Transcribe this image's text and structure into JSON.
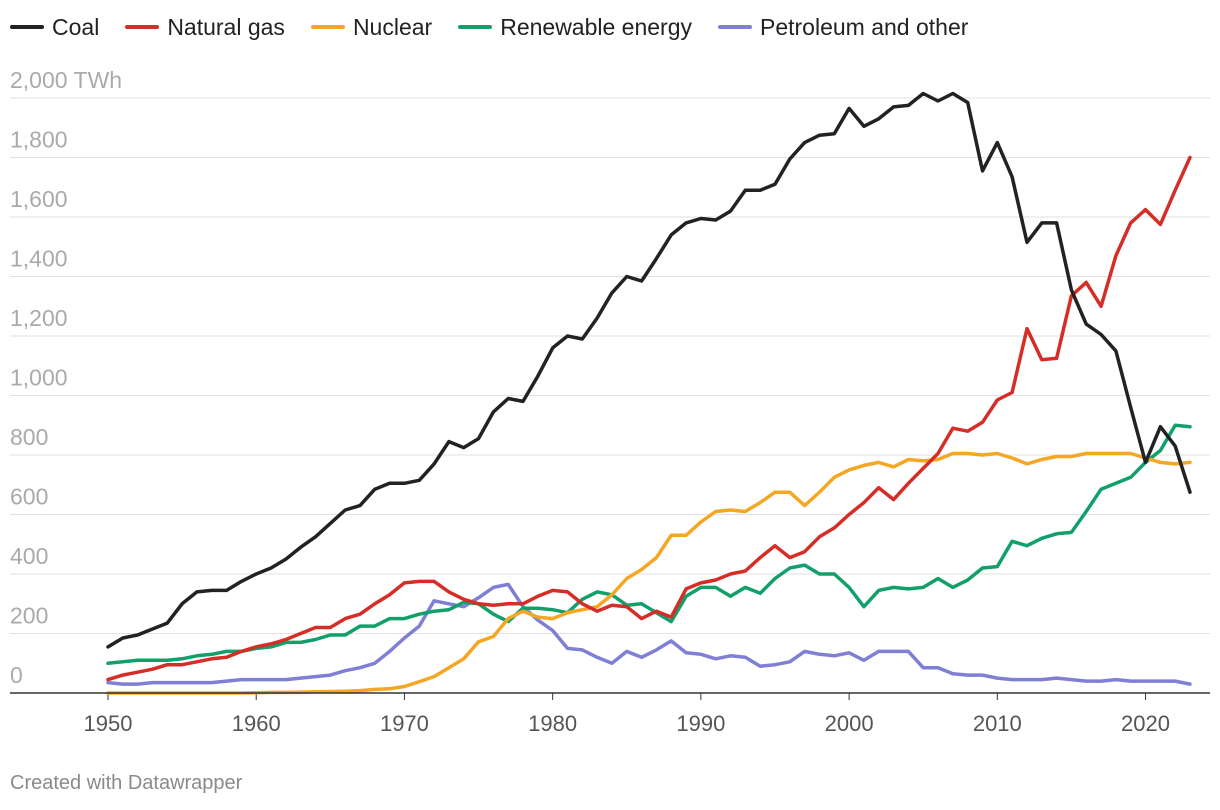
{
  "chart_data": {
    "type": "line",
    "title": "",
    "xlabel": "",
    "ylabel": "",
    "y_unit": "TWh",
    "xlim": [
      1950,
      2023
    ],
    "ylim": [
      0,
      2000
    ],
    "x_ticks": [
      "1950",
      "1960",
      "1970",
      "1980",
      "1990",
      "2000",
      "2010",
      "2020"
    ],
    "y_ticks": [
      "0",
      "200",
      "400",
      "600",
      "800",
      "1,000",
      "1,200",
      "1,400",
      "1,600",
      "1,800",
      "2,000 TWh"
    ],
    "grid": true,
    "legend_position": "top-left",
    "x": [
      1950,
      1951,
      1952,
      1953,
      1954,
      1955,
      1956,
      1957,
      1958,
      1959,
      1960,
      1961,
      1962,
      1963,
      1964,
      1965,
      1966,
      1967,
      1968,
      1969,
      1970,
      1971,
      1972,
      1973,
      1974,
      1975,
      1976,
      1977,
      1978,
      1979,
      1980,
      1981,
      1982,
      1983,
      1984,
      1985,
      1986,
      1987,
      1988,
      1989,
      1990,
      1991,
      1992,
      1993,
      1994,
      1995,
      1996,
      1997,
      1998,
      1999,
      2000,
      2001,
      2002,
      2003,
      2004,
      2005,
      2006,
      2007,
      2008,
      2009,
      2010,
      2011,
      2012,
      2013,
      2014,
      2015,
      2016,
      2017,
      2018,
      2019,
      2020,
      2021,
      2022,
      2023
    ],
    "series": [
      {
        "name": "Coal",
        "color": "#222222",
        "values": [
          155,
          185,
          195,
          215,
          235,
          300,
          340,
          345,
          345,
          375,
          400,
          420,
          450,
          490,
          525,
          570,
          615,
          630,
          685,
          705,
          705,
          715,
          770,
          845,
          825,
          855,
          945,
          990,
          980,
          1065,
          1160,
          1200,
          1190,
          1260,
          1345,
          1400,
          1385,
          1460,
          1540,
          1580,
          1595,
          1590,
          1620,
          1690,
          1690,
          1710,
          1795,
          1850,
          1875,
          1880,
          1965,
          1905,
          1930,
          1970,
          1975,
          2015,
          1990,
          2015,
          1985,
          1755,
          1850,
          1735,
          1515,
          1580,
          1580,
          1355,
          1240,
          1205,
          1150,
          960,
          775,
          895,
          830,
          675
        ]
      },
      {
        "name": "Natural gas",
        "color": "#d42e27",
        "values": [
          45,
          60,
          70,
          80,
          95,
          95,
          105,
          115,
          120,
          140,
          155,
          165,
          180,
          200,
          220,
          220,
          250,
          265,
          300,
          330,
          370,
          375,
          375,
          340,
          315,
          300,
          295,
          300,
          300,
          325,
          345,
          340,
          300,
          275,
          295,
          290,
          250,
          275,
          255,
          350,
          370,
          380,
          400,
          410,
          455,
          495,
          455,
          475,
          525,
          555,
          600,
          640,
          690,
          650,
          705,
          755,
          805,
          890,
          880,
          910,
          985,
          1010,
          1225,
          1120,
          1125,
          1335,
          1380,
          1300,
          1470,
          1580,
          1625,
          1575,
          1690,
          1800
        ]
      },
      {
        "name": "Nuclear",
        "color": "#f5a623",
        "values": [
          0,
          0,
          0,
          0,
          0,
          0,
          0,
          0,
          0,
          0,
          1,
          2,
          2,
          3,
          4,
          5,
          6,
          8,
          12,
          14,
          22,
          38,
          55,
          85,
          115,
          172,
          190,
          250,
          275,
          255,
          250,
          270,
          280,
          290,
          330,
          385,
          415,
          455,
          530,
          530,
          575,
          610,
          615,
          610,
          640,
          675,
          675,
          630,
          675,
          725,
          750,
          765,
          775,
          760,
          785,
          780,
          785,
          805,
          805,
          800,
          805,
          790,
          770,
          785,
          795,
          795,
          805,
          805,
          805,
          805,
          790,
          775,
          770,
          775
        ]
      },
      {
        "name": "Renewable energy",
        "color": "#11a06a",
        "values": [
          100,
          105,
          110,
          110,
          110,
          115,
          125,
          130,
          140,
          140,
          150,
          155,
          170,
          170,
          180,
          195,
          195,
          225,
          225,
          250,
          250,
          265,
          275,
          280,
          305,
          300,
          265,
          240,
          285,
          285,
          280,
          270,
          315,
          340,
          330,
          295,
          300,
          270,
          240,
          325,
          355,
          355,
          325,
          355,
          335,
          385,
          420,
          430,
          400,
          400,
          355,
          290,
          345,
          355,
          350,
          355,
          385,
          355,
          380,
          420,
          425,
          510,
          495,
          520,
          535,
          540,
          610,
          685,
          705,
          725,
          775,
          815,
          900,
          895
        ]
      },
      {
        "name": "Petroleum and other",
        "color": "#7f7fd5",
        "values": [
          35,
          30,
          30,
          35,
          35,
          35,
          35,
          35,
          40,
          45,
          45,
          45,
          45,
          50,
          55,
          60,
          75,
          85,
          100,
          140,
          185,
          225,
          310,
          300,
          290,
          320,
          355,
          365,
          290,
          245,
          210,
          150,
          145,
          120,
          100,
          140,
          120,
          145,
          175,
          135,
          130,
          115,
          125,
          120,
          90,
          95,
          105,
          140,
          130,
          125,
          135,
          110,
          140,
          140,
          140,
          85,
          85,
          65,
          60,
          60,
          50,
          45,
          45,
          45,
          50,
          45,
          40,
          40,
          45,
          40,
          40,
          40,
          40,
          30
        ]
      }
    ],
    "footer": "Created with Datawrapper"
  }
}
